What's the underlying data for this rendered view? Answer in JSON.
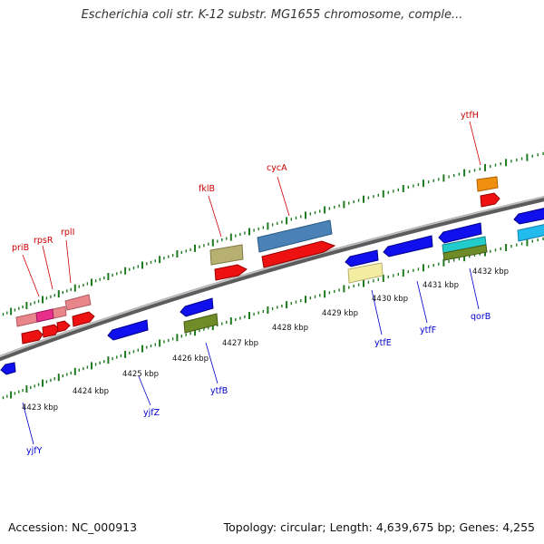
{
  "header": {
    "title": "Escherichia coli str. K-12 substr. MG1655 chromosome, comple..."
  },
  "footer": {
    "accession": "Accession: NC_000913",
    "summary": "Topology: circular; Length: 4,639,675 bp; Genes: 4,255"
  },
  "colors": {
    "backbone": "#8c8c8c",
    "tick": "#1e7a1e",
    "forward_label": "#cc0000",
    "reverse_label": "#0000cc"
  },
  "ruler": {
    "tick_labels": [
      "4423 kbp",
      "4424 kbp",
      "4425 kbp",
      "4426 kbp",
      "4427 kbp",
      "4428 kbp",
      "4429 kbp",
      "4430 kbp",
      "4431 kbp",
      "4432 kbp"
    ]
  },
  "genes": {
    "forward": [
      "priB",
      "rpsR",
      "rplI",
      "fklB",
      "cycA",
      "ytfH"
    ],
    "reverse": [
      "yjfY",
      "yjfZ",
      "ytfB",
      "ytfE",
      "ytfF",
      "qorB"
    ]
  }
}
